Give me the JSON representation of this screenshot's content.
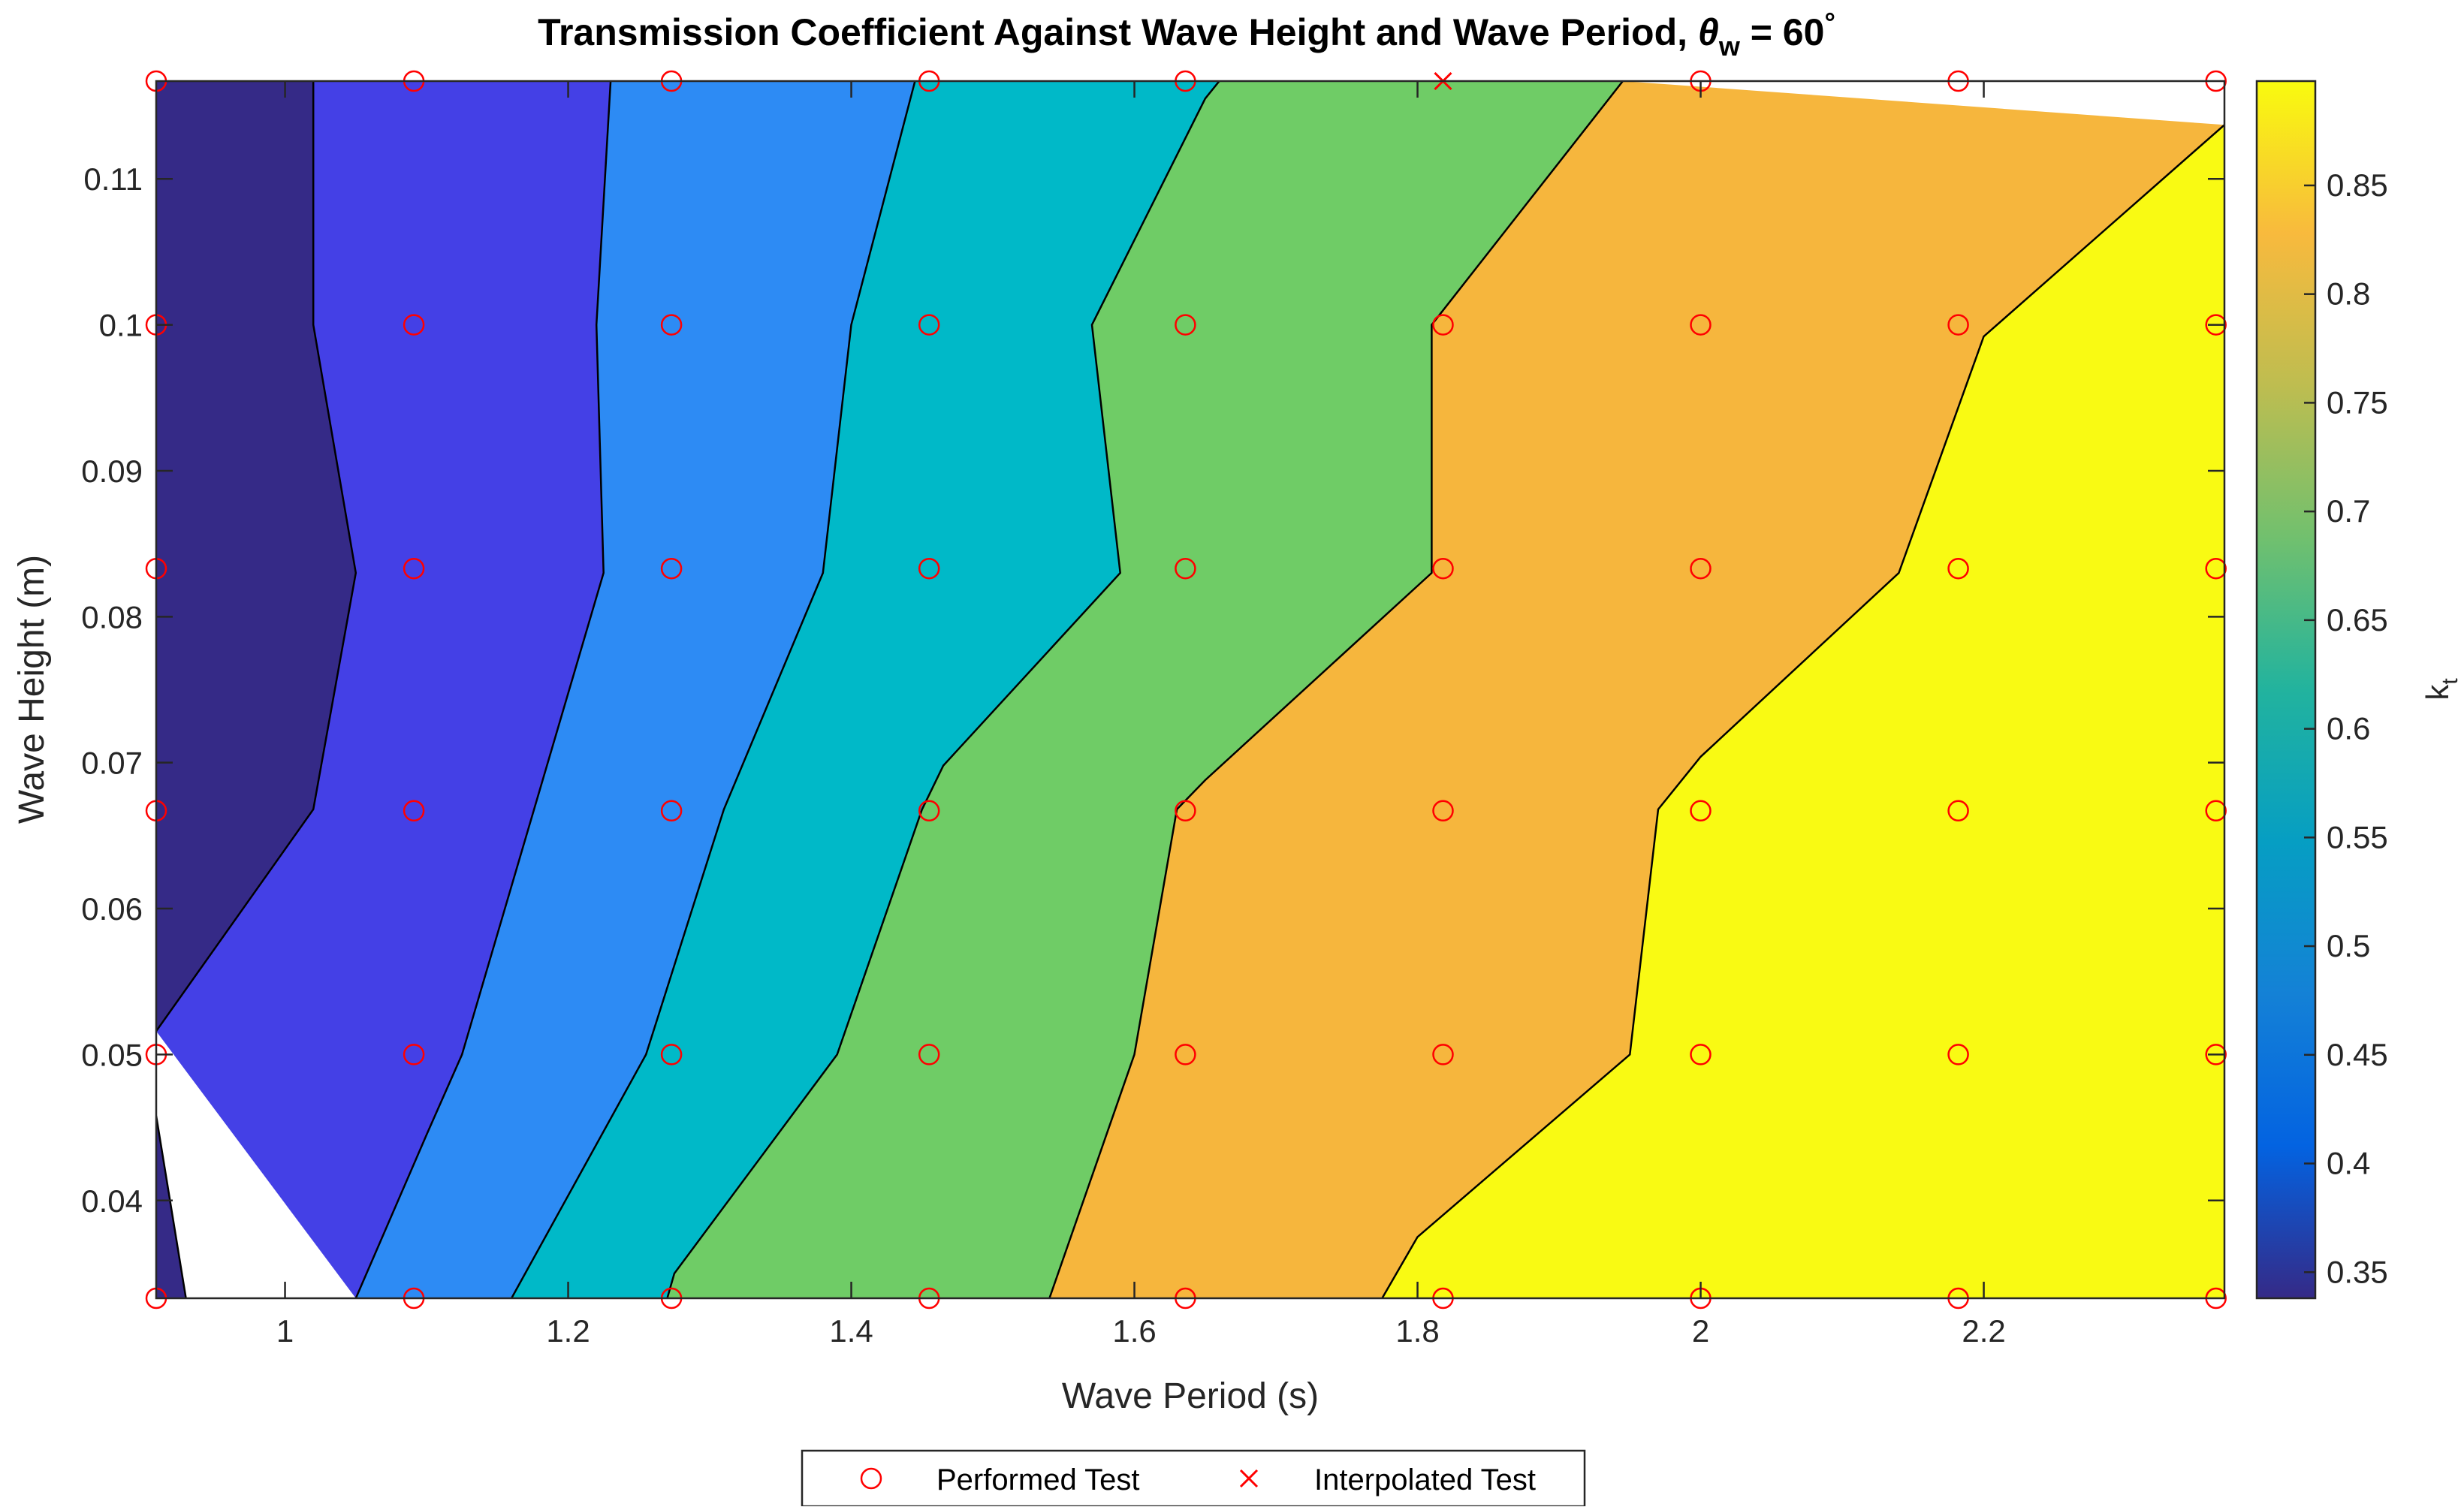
{
  "chart_data": {
    "type": "contour",
    "title": "Transmission Coefficient Against Wave Height and Wave Period, ",
    "title_theta": "θ",
    "title_theta_sub": "w",
    "title_value": " = 60",
    "title_degree": "°",
    "xlabel": "Wave Period (s)",
    "ylabel": "Wave Height (m)",
    "colorbar_label": "k",
    "colorbar_label_sub": "t",
    "xlim": [
      0.909,
      2.37
    ],
    "ylim": [
      0.0333,
      0.1167
    ],
    "x_ticks": [
      1,
      1.2,
      1.4,
      1.6,
      1.8,
      2,
      2.2
    ],
    "x_tick_labels": [
      "1",
      "1.2",
      "1.4",
      "1.6",
      "1.8",
      "2",
      "2.2"
    ],
    "y_ticks": [
      0.04,
      0.05,
      0.06,
      0.07,
      0.08,
      0.09,
      0.1,
      0.11
    ],
    "y_tick_labels": [
      "0.04",
      "0.05",
      "0.06",
      "0.07",
      "0.08",
      "0.09",
      "0.1",
      "0.11"
    ],
    "colorbar_ticks": [
      0.35,
      0.4,
      0.45,
      0.5,
      0.55,
      0.6,
      0.65,
      0.7,
      0.75,
      0.8,
      0.85
    ],
    "colorbar_tick_labels": [
      "0.35",
      "0.4",
      "0.45",
      "0.5",
      "0.55",
      "0.6",
      "0.65",
      "0.7",
      "0.75",
      "0.8",
      "0.85"
    ],
    "colorbar_range": [
      0.338,
      0.898
    ],
    "colormap": "parula",
    "contour_levels": [
      0.4,
      0.5,
      0.6,
      0.7,
      0.8,
      0.9
    ],
    "band_colors": [
      "#352a87",
      "#4440e6",
      "#2d8bf4",
      "#00b9c8",
      "#6fcc66",
      "#f6b63d",
      "#f9fa13"
    ],
    "contour_lines": [
      [
        [
          0.909,
          0.0516
        ],
        [
          1.02,
          0.0668
        ],
        [
          1.05,
          0.083
        ],
        [
          1.02,
          0.1
        ],
        [
          1.02,
          0.1167
        ]
      ],
      [
        [
          1.05,
          0.0333
        ],
        [
          1.1,
          0.0445
        ],
        [
          1.125,
          0.05
        ],
        [
          1.225,
          0.083
        ],
        [
          1.22,
          0.1
        ],
        [
          1.23,
          0.1167
        ]
      ],
      [
        [
          1.16,
          0.0333
        ],
        [
          1.255,
          0.05
        ],
        [
          1.31,
          0.0668
        ],
        [
          1.38,
          0.083
        ],
        [
          1.4,
          0.1
        ],
        [
          1.445,
          0.1167
        ]
      ],
      [
        [
          1.27,
          0.0333
        ],
        [
          1.275,
          0.035
        ],
        [
          1.39,
          0.05
        ],
        [
          1.45,
          0.0668
        ],
        [
          1.465,
          0.0698
        ],
        [
          1.59,
          0.083
        ],
        [
          1.57,
          0.1
        ],
        [
          1.65,
          0.1155
        ],
        [
          1.66,
          0.1167
        ]
      ],
      [
        [
          1.54,
          0.0333
        ],
        [
          1.6,
          0.05
        ],
        [
          1.63,
          0.0668
        ],
        [
          1.65,
          0.0688
        ],
        [
          1.81,
          0.083
        ],
        [
          1.81,
          0.1
        ],
        [
          1.945,
          0.1167
        ]
      ],
      [
        [
          1.775,
          0.0333
        ],
        [
          1.8,
          0.0375
        ],
        [
          1.95,
          0.05
        ],
        [
          1.97,
          0.0668
        ],
        [
          2.0,
          0.0704
        ],
        [
          2.14,
          0.083
        ],
        [
          2.2,
          0.0992
        ],
        [
          2.37,
          0.1137
        ]
      ]
    ],
    "lower_left_line": [
      [
        0.909,
        0.0458
      ],
      [
        0.93,
        0.0333
      ]
    ],
    "performed_tests": {
      "name": "Performed Test",
      "marker": "circle",
      "color": "#ff0000",
      "x": [
        0.909,
        1.091,
        1.273,
        1.455,
        1.636,
        1.818,
        2.0,
        2.182,
        2.364
      ],
      "y": [
        0.0333,
        0.05,
        0.0667,
        0.0833,
        0.1,
        0.1167
      ]
    },
    "interpolated_tests": {
      "name": "Interpolated Test",
      "marker": "x",
      "color": "#ff0000",
      "points": [
        [
          1.818,
          0.1167
        ]
      ]
    },
    "legend_position": "bottom-outside"
  }
}
